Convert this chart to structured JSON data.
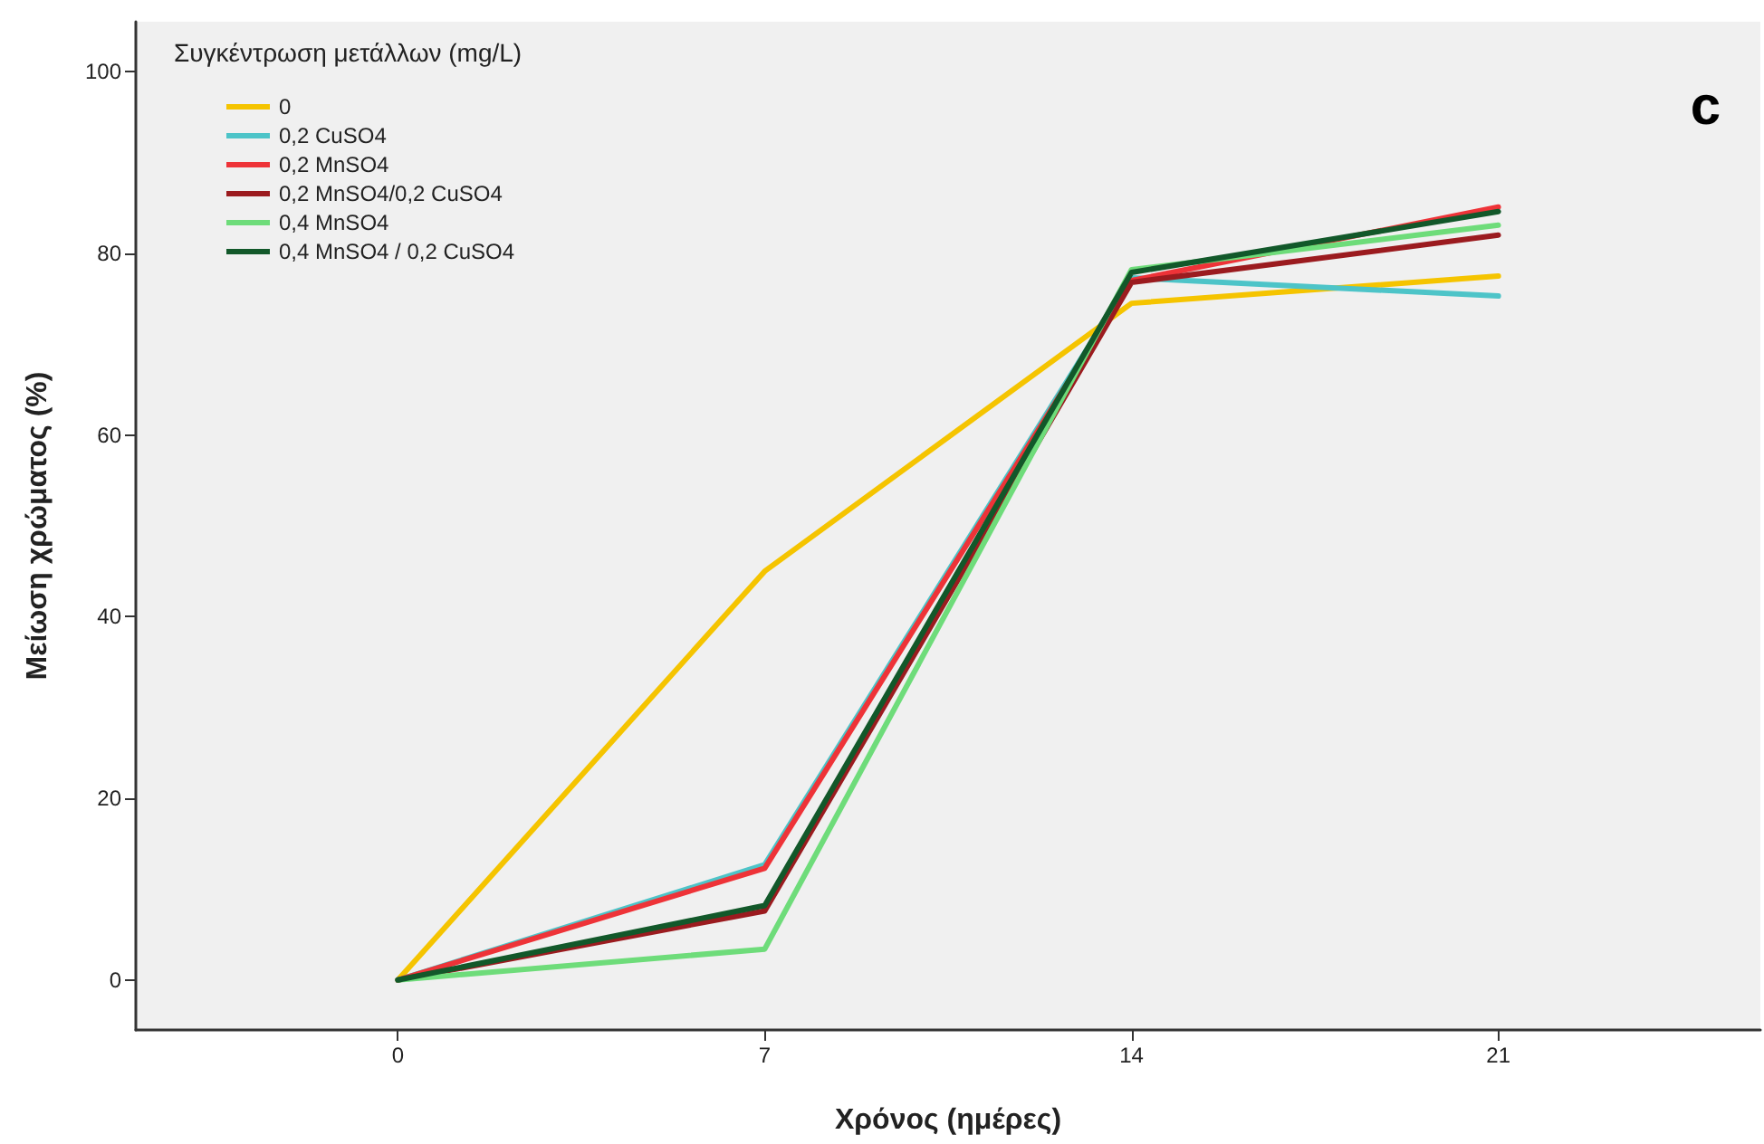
{
  "chart_data": {
    "type": "line",
    "xlabel": "Χρόνος (ημέρες)",
    "ylabel": "Μείωση χρώματος (%)",
    "legend_title": "Συγκέντρωση μετάλλων (mg/L)",
    "annotations": [
      "c"
    ],
    "x": [
      0,
      7,
      14,
      21
    ],
    "xlim": [
      -5,
      26
    ],
    "xticks": [
      0,
      7,
      14,
      21
    ],
    "ylim": [
      -5.5,
      105.5
    ],
    "yticks": [
      0,
      20,
      40,
      60,
      80,
      100
    ],
    "grid": false,
    "legend": "top left",
    "marker": "none",
    "line_style": "solid",
    "series": [
      {
        "name": "0",
        "color": "#f5c400",
        "values": [
          0,
          45,
          74.5,
          77.5
        ]
      },
      {
        "name": "0,2 CuSO4",
        "color": "#4dc4c8",
        "values": [
          0,
          12.7,
          77.3,
          75.3
        ]
      },
      {
        "name": "0,2 MnSO4",
        "color": "#ee3338",
        "values": [
          0,
          12.3,
          77,
          85.1
        ]
      },
      {
        "name": "0,2 MnSO4/0,2 CuSO4",
        "color": "#9b1b1f",
        "values": [
          0,
          7.6,
          76.8,
          82
        ]
      },
      {
        "name": "0,4 MnSO4",
        "color": "#6edc7a",
        "values": [
          0,
          3.4,
          78.2,
          83.1
        ]
      },
      {
        "name": "0,4 MnSO4 / 0,2 CuSO4",
        "color": "#12582a",
        "values": [
          0,
          8.2,
          77.9,
          84.6
        ]
      }
    ]
  }
}
